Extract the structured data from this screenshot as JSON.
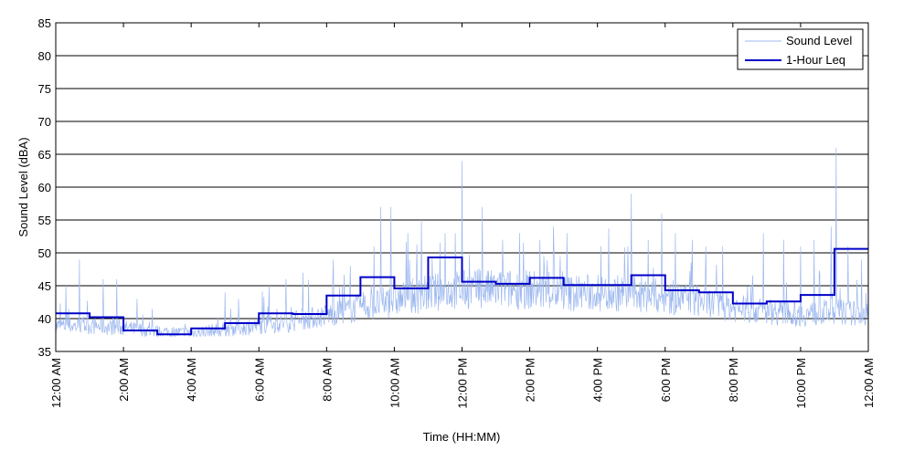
{
  "chart_data": {
    "type": "line",
    "xlabel": "Time (HH:MM)",
    "ylabel": "Sound Level (dBA)",
    "xlim": [
      0,
      24
    ],
    "ylim": [
      35,
      85
    ],
    "grid": "horizontal",
    "legend_position": "top-right",
    "x_ticks": [
      {
        "x": 0,
        "label": "12:00 AM"
      },
      {
        "x": 2,
        "label": "2:00 AM"
      },
      {
        "x": 4,
        "label": "4:00 AM"
      },
      {
        "x": 6,
        "label": "6:00 AM"
      },
      {
        "x": 8,
        "label": "8:00 AM"
      },
      {
        "x": 10,
        "label": "10:00 AM"
      },
      {
        "x": 12,
        "label": "12:00 PM"
      },
      {
        "x": 14,
        "label": "2:00 PM"
      },
      {
        "x": 16,
        "label": "4:00 PM"
      },
      {
        "x": 18,
        "label": "6:00 PM"
      },
      {
        "x": 20,
        "label": "8:00 PM"
      },
      {
        "x": 22,
        "label": "10:00 PM"
      },
      {
        "x": 24,
        "label": "12:00 AM"
      }
    ],
    "y_ticks": [
      35,
      40,
      45,
      50,
      55,
      60,
      65,
      70,
      75,
      80,
      85
    ],
    "series": [
      {
        "name": "Sound Level",
        "color": "#9db8ef",
        "style": "thin-noisy",
        "baseline": [
          [
            0,
            38.5
          ],
          [
            1,
            38.5
          ],
          [
            2,
            38.2
          ],
          [
            3,
            37.7
          ],
          [
            4,
            37.5
          ],
          [
            5,
            38.0
          ],
          [
            6,
            38.5
          ],
          [
            7,
            39.0
          ],
          [
            8,
            40.0
          ],
          [
            9,
            41.0
          ],
          [
            10,
            42.0
          ],
          [
            11,
            43.0
          ],
          [
            12,
            43.5
          ],
          [
            13,
            43.5
          ],
          [
            14,
            43.5
          ],
          [
            15,
            43.0
          ],
          [
            16,
            43.0
          ],
          [
            17,
            43.0
          ],
          [
            18,
            42.5
          ],
          [
            19,
            42.0
          ],
          [
            20,
            41.0
          ],
          [
            21,
            40.5
          ],
          [
            22,
            40.0
          ],
          [
            23,
            40.5
          ],
          [
            24,
            40.0
          ]
        ],
        "spikes": [
          [
            0.3,
            45
          ],
          [
            0.7,
            49
          ],
          [
            1.4,
            46
          ],
          [
            1.8,
            46
          ],
          [
            2.4,
            43
          ],
          [
            5.0,
            44
          ],
          [
            5.4,
            43
          ],
          [
            6.3,
            45
          ],
          [
            6.8,
            46
          ],
          [
            7.3,
            47
          ],
          [
            8.2,
            49
          ],
          [
            8.7,
            48
          ],
          [
            9.4,
            51
          ],
          [
            9.6,
            57
          ],
          [
            9.9,
            57
          ],
          [
            10.4,
            53
          ],
          [
            10.8,
            55
          ],
          [
            11.5,
            53
          ],
          [
            11.8,
            53
          ],
          [
            12.0,
            64
          ],
          [
            12.6,
            57
          ],
          [
            13.2,
            52
          ],
          [
            13.7,
            53
          ],
          [
            14.3,
            52
          ],
          [
            14.7,
            54
          ],
          [
            15.1,
            53
          ],
          [
            16.1,
            51
          ],
          [
            16.9,
            51
          ],
          [
            17.0,
            59
          ],
          [
            17.5,
            52
          ],
          [
            17.9,
            56
          ],
          [
            18.3,
            53
          ],
          [
            18.8,
            52
          ],
          [
            19.2,
            51
          ],
          [
            19.7,
            51
          ],
          [
            20.9,
            53
          ],
          [
            21.5,
            52
          ],
          [
            22.0,
            51
          ],
          [
            22.4,
            52
          ],
          [
            22.9,
            54
          ],
          [
            23.05,
            66
          ],
          [
            23.4,
            51
          ],
          [
            23.8,
            49
          ]
        ]
      },
      {
        "name": "1-Hour Leq",
        "color": "#0000c8",
        "style": "step",
        "values": [
          40.8,
          40.2,
          38.2,
          37.6,
          38.5,
          39.3,
          40.8,
          40.7,
          43.5,
          46.3,
          44.6,
          49.3,
          45.6,
          45.3,
          46.2,
          45.1,
          45.1,
          46.6,
          44.3,
          44.0,
          42.3,
          42.6,
          43.6,
          50.6
        ]
      }
    ]
  }
}
